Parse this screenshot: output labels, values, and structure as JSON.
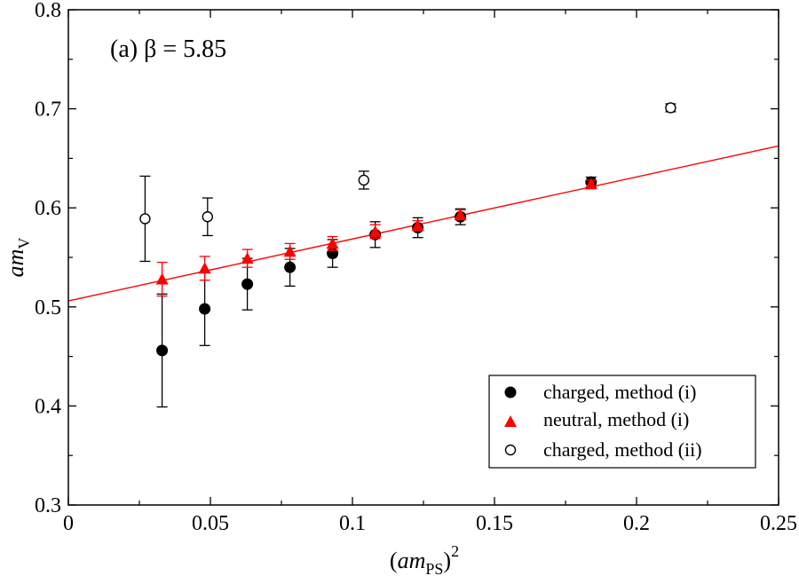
{
  "chart_data": {
    "type": "scatter",
    "annotation": "(a) β = 5.85",
    "xlabel": {
      "prefix": "(",
      "base": "am",
      "sub": "PS",
      "suffix": ")",
      "sup": "2"
    },
    "ylabel": {
      "base": "am",
      "sub": "V"
    },
    "xlim": [
      0,
      0.25
    ],
    "ylim": [
      0.3,
      0.8
    ],
    "x_ticks": [
      0,
      0.05,
      0.1,
      0.15,
      0.2,
      0.25
    ],
    "x_tick_labels": [
      "0",
      "0.05",
      "0.1",
      "0.15",
      "0.2",
      "0.25"
    ],
    "y_ticks": [
      0.3,
      0.4,
      0.5,
      0.6,
      0.7,
      0.8
    ],
    "y_tick_labels": [
      "0.3",
      "0.4",
      "0.5",
      "0.6",
      "0.7",
      "0.8"
    ],
    "legend_position": "bottom-right",
    "series": [
      {
        "name": "charged, method (i)",
        "marker": "filled-circle",
        "color": "#000000",
        "points": [
          {
            "x": 0.033,
            "y": 0.456,
            "err": 0.057
          },
          {
            "x": 0.048,
            "y": 0.498,
            "err": 0.037
          },
          {
            "x": 0.063,
            "y": 0.523,
            "err": 0.026
          },
          {
            "x": 0.078,
            "y": 0.54,
            "err": 0.019
          },
          {
            "x": 0.093,
            "y": 0.554,
            "err": 0.014
          },
          {
            "x": 0.108,
            "y": 0.573,
            "err": 0.013
          },
          {
            "x": 0.123,
            "y": 0.58,
            "err": 0.01
          },
          {
            "x": 0.138,
            "y": 0.591,
            "err": 0.008
          },
          {
            "x": 0.184,
            "y": 0.626,
            "err": 0.005
          }
        ]
      },
      {
        "name": "neutral, method (i)",
        "marker": "filled-triangle",
        "color": "#ff0000",
        "points": [
          {
            "x": 0.033,
            "y": 0.528,
            "err": 0.017
          },
          {
            "x": 0.048,
            "y": 0.539,
            "err": 0.012
          },
          {
            "x": 0.063,
            "y": 0.549,
            "err": 0.009
          },
          {
            "x": 0.078,
            "y": 0.556,
            "err": 0.008
          },
          {
            "x": 0.093,
            "y": 0.564,
            "err": 0.007
          },
          {
            "x": 0.108,
            "y": 0.576,
            "err": 0.007
          },
          {
            "x": 0.123,
            "y": 0.582,
            "err": 0.005
          },
          {
            "x": 0.138,
            "y": 0.593,
            "err": 0.005
          },
          {
            "x": 0.184,
            "y": 0.624,
            "err": 0.004
          }
        ]
      },
      {
        "name": "charged, method (ii)",
        "marker": "open-circle",
        "color": "#000000",
        "points": [
          {
            "x": 0.027,
            "y": 0.589,
            "err": 0.043
          },
          {
            "x": 0.049,
            "y": 0.591,
            "err": 0.019
          },
          {
            "x": 0.104,
            "y": 0.628,
            "err": 0.009
          },
          {
            "x": 0.212,
            "y": 0.701,
            "err": 0.004
          }
        ]
      }
    ],
    "fit_line": {
      "color": "#ff0000",
      "intercept": 0.506,
      "slope": 0.626,
      "x_range": [
        0,
        0.25
      ]
    }
  }
}
